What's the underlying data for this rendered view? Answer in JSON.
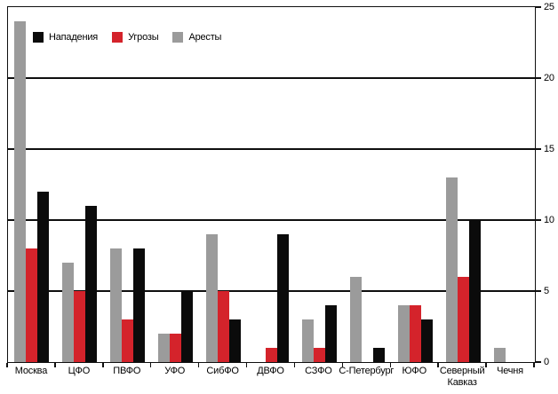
{
  "chart_data": {
    "type": "bar",
    "title": "",
    "xlabel": "",
    "ylabel": "",
    "categories": [
      "Москва",
      "ЦФО",
      "ПВФО",
      "УФО",
      "СибФО",
      "ДВФО",
      "СЗФО",
      "С-Петербург",
      "ЮФО",
      "Северный Кавказ",
      "Чечня"
    ],
    "series": [
      {
        "name": "Аресты",
        "color": "#9b9b9b",
        "values": [
          24,
          7,
          8,
          2,
          9,
          0,
          3,
          6,
          4,
          13,
          1
        ]
      },
      {
        "name": "Угрозы",
        "color": "#d4232b",
        "values": [
          8,
          5,
          3,
          2,
          5,
          1,
          1,
          0,
          4,
          6,
          0
        ]
      },
      {
        "name": "Нападения",
        "color": "#0b0b0b",
        "values": [
          12,
          11,
          8,
          5,
          3,
          9,
          4,
          1,
          3,
          10,
          0
        ]
      }
    ],
    "legend": [
      {
        "label": "Нападения",
        "color": "#0b0b0b"
      },
      {
        "label": "Угрозы",
        "color": "#d4232b"
      },
      {
        "label": "Аресты",
        "color": "#9b9b9b"
      }
    ],
    "legend_position": "top-left-inside",
    "y_axis_side": "right",
    "ylim": [
      0,
      25
    ],
    "yticks": [
      0,
      5,
      10,
      15,
      20,
      25
    ],
    "grid": true,
    "colors": {
      "attacks": "#0b0b0b",
      "threats": "#d4232b",
      "arrests": "#9b9b9b",
      "axis": "#0f0f0f",
      "background": "#ffffff"
    }
  }
}
